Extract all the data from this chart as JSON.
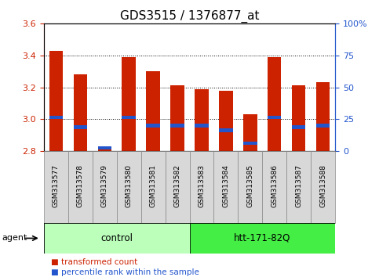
{
  "title": "GDS3515 / 1376877_at",
  "samples": [
    "GSM313577",
    "GSM313578",
    "GSM313579",
    "GSM313580",
    "GSM313581",
    "GSM313582",
    "GSM313583",
    "GSM313584",
    "GSM313585",
    "GSM313586",
    "GSM313587",
    "GSM313588"
  ],
  "red_values": [
    3.43,
    3.28,
    2.82,
    3.39,
    3.3,
    3.21,
    3.19,
    3.18,
    3.03,
    3.39,
    3.21,
    3.23
  ],
  "blue_values": [
    3.01,
    2.95,
    2.82,
    3.01,
    2.96,
    2.96,
    2.96,
    2.93,
    2.85,
    3.01,
    2.95,
    2.96
  ],
  "ymin": 2.8,
  "ymax": 3.6,
  "yticks_left": [
    2.8,
    3.0,
    3.2,
    3.4,
    3.6
  ],
  "yticks_right": [
    0,
    25,
    50,
    75,
    100
  ],
  "right_tick_labels": [
    "0",
    "25",
    "50",
    "75",
    "100%"
  ],
  "bar_color": "#cc2200",
  "blue_color": "#2255cc",
  "bar_width": 0.55,
  "groups": [
    {
      "label": "control",
      "start": 0,
      "end": 5,
      "color": "#bbffbb"
    },
    {
      "label": "htt-171-82Q",
      "start": 6,
      "end": 11,
      "color": "#44ee44"
    }
  ],
  "legend_items": [
    {
      "label": "transformed count",
      "color": "#cc2200"
    },
    {
      "label": "percentile rank within the sample",
      "color": "#2255cc"
    }
  ],
  "agent_label": "agent",
  "grid_style": "dotted",
  "background_color": "#ffffff",
  "axis_color_left": "#cc2200",
  "axis_color_right": "#2255cc",
  "title_fontsize": 11,
  "tick_fontsize": 8,
  "sample_fontsize": 6.5,
  "blue_bar_height": 0.022,
  "cell_bg": "#d8d8d8",
  "cell_edge": "#888888"
}
